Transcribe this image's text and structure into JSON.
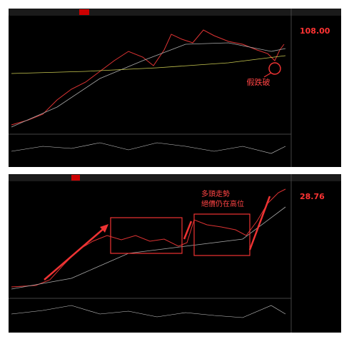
{
  "panels": [
    {
      "price": "108.00",
      "annotations": [
        "假跌破"
      ]
    },
    {
      "price": "28.76",
      "annotations": [
        "多頭走勢",
        "絕價仍在高位"
      ]
    }
  ]
}
